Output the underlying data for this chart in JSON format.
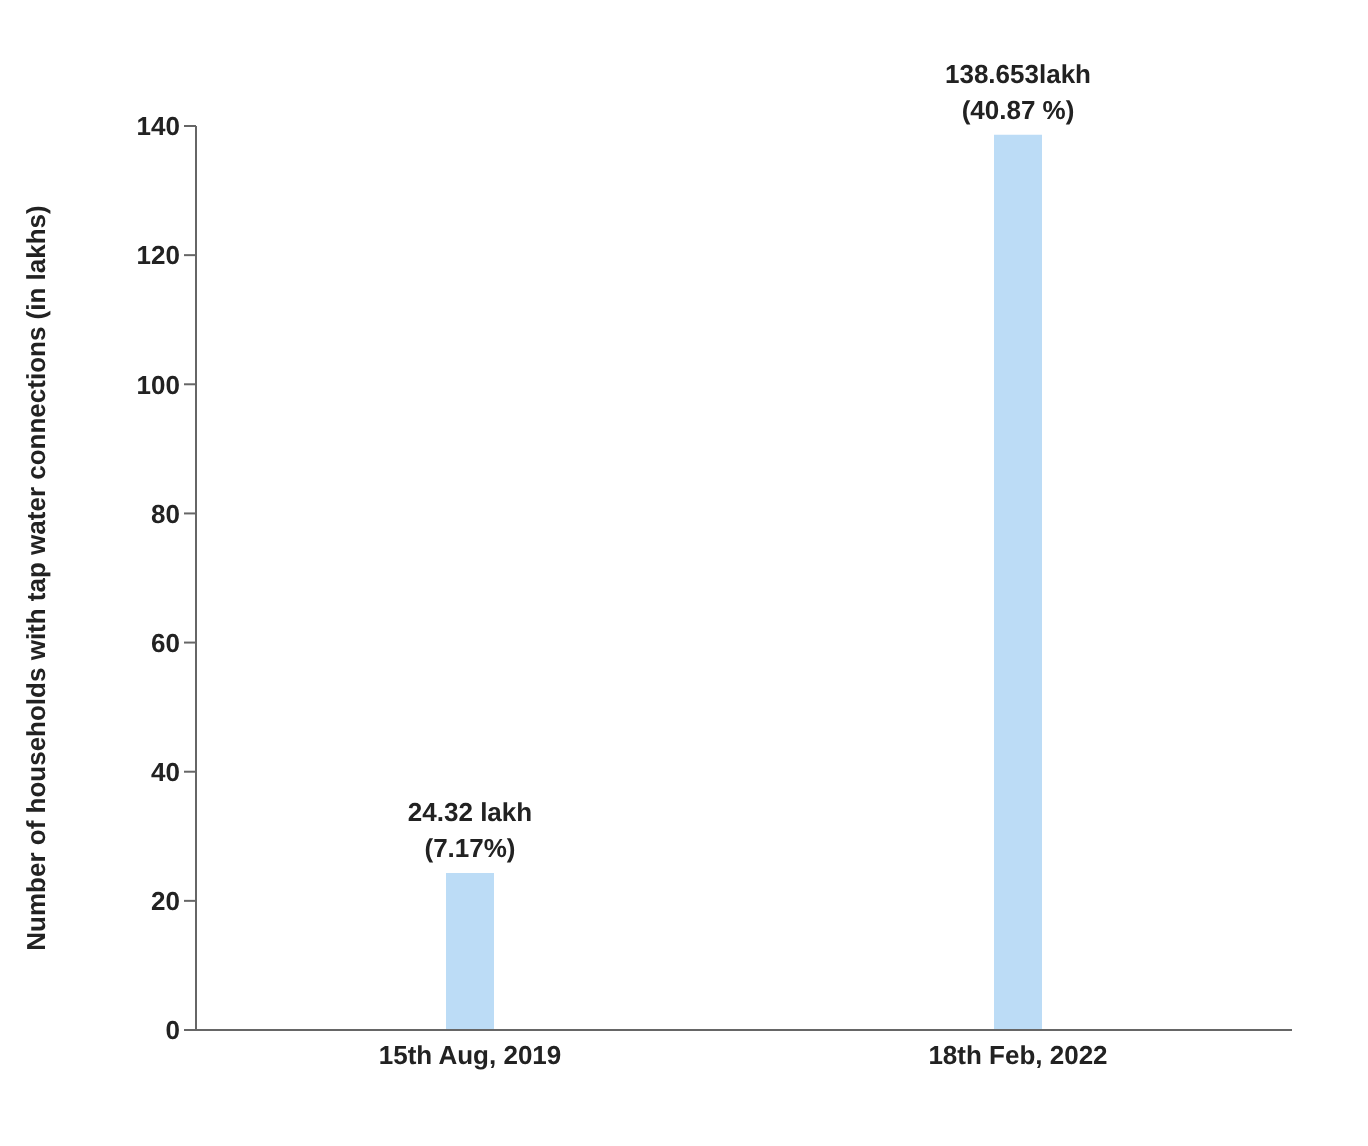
{
  "chart_data": {
    "type": "bar",
    "ylabel": "Number of households with tap water connections  (in lakhs)",
    "categories": [
      "15th Aug, 2019",
      "18th Feb, 2022"
    ],
    "values": [
      24.32,
      138.653
    ],
    "color": "#bcdcf6",
    "value_labels": [
      "24.32 lakh\n(7.17%)",
      "138.653lakh\n(40.87 %)"
    ],
    "ylim": [
      0,
      140
    ],
    "yticks": [
      0,
      20,
      40,
      60,
      80,
      100,
      120,
      140
    ],
    "grid": false,
    "legend": false
  }
}
